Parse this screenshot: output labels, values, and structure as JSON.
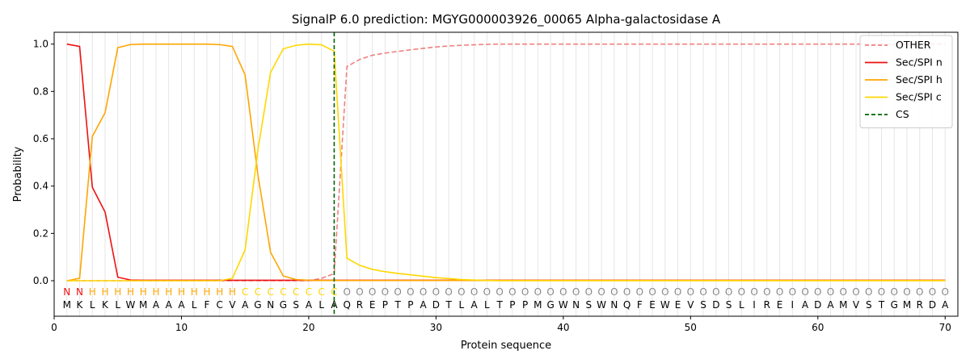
{
  "chart_data": {
    "type": "line",
    "title": "SignalP 6.0 prediction: MGYG000003926_00065 Alpha-galactosidase A",
    "xlabel": "Protein sequence",
    "ylabel": "Probability",
    "xlim": [
      0,
      71
    ],
    "ylim": [
      -0.15,
      1.05
    ],
    "xticks": [
      0,
      10,
      20,
      30,
      40,
      50,
      60,
      70
    ],
    "yticks": [
      0.0,
      0.2,
      0.4,
      0.6,
      0.8,
      1.0
    ],
    "grid": "vertical lines at each residue",
    "legend_position": "top-right",
    "sequence": "MKLKLWMAAALFCVAGNGSALAQREPTPADTLALTPPMGWNSWNQFEWEVSDSLIREIADAMVSTGMRDA",
    "region_labels": "NNHHHHHHHHHHHHCCCCCCCCOOOOOOOOOOOOOOOOOOOOOOOOOOOOOOOOOOOOOOOOOOOOOOOO",
    "region_colors": {
      "N": "#ee1111",
      "H": "#ffa500",
      "C": "#ffd700",
      "O": "#888888"
    },
    "cleavage_site": 22,
    "series": [
      {
        "name": "OTHER",
        "color": "#f08080",
        "dash": "dashed",
        "values": [
          0,
          0,
          0,
          0,
          0,
          0,
          0,
          0,
          0,
          0,
          0,
          0,
          0,
          0,
          0,
          0,
          0,
          0,
          0,
          0,
          0.01,
          0.03,
          0.905,
          0.935,
          0.953,
          0.962,
          0.969,
          0.976,
          0.982,
          0.988,
          0.992,
          0.995,
          0.997,
          0.999,
          1,
          1,
          1,
          1,
          1,
          1,
          1,
          1,
          1,
          1,
          1,
          1,
          1,
          1,
          1,
          1,
          1,
          1,
          1,
          1,
          1,
          1,
          1,
          1,
          1,
          1,
          1,
          1,
          1,
          1,
          1,
          1,
          1,
          1,
          1,
          1
        ]
      },
      {
        "name": "Sec/SPI n",
        "color": "#ee1111",
        "dash": "solid",
        "values": [
          1.0,
          0.99,
          0.395,
          0.29,
          0.015,
          0.003,
          0.002,
          0.002,
          0.002,
          0.002,
          0.002,
          0.002,
          0.002,
          0.002,
          0.002,
          0.002,
          0.002,
          0.002,
          0.002,
          0.002,
          0.002,
          0.002,
          0.002,
          0.002,
          0.002,
          0.002,
          0.002,
          0.002,
          0.002,
          0.002,
          0.002,
          0.002,
          0.002,
          0.002,
          0.002,
          0.002,
          0.002,
          0.002,
          0.002,
          0.002,
          0.002,
          0.002,
          0.002,
          0.002,
          0.002,
          0.002,
          0.002,
          0.002,
          0.002,
          0.002,
          0.002,
          0.002,
          0.002,
          0.002,
          0.002,
          0.002,
          0.002,
          0.002,
          0.002,
          0.002,
          0.002,
          0.002,
          0.002,
          0.002,
          0.002,
          0.002,
          0.002,
          0.002,
          0.002,
          0.002
        ]
      },
      {
        "name": "Sec/SPI h",
        "color": "#ffa500",
        "dash": "solid",
        "values": [
          0.0,
          0.01,
          0.61,
          0.71,
          0.985,
          0.998,
          1.0,
          1.0,
          1.0,
          1.0,
          1.0,
          1.0,
          0.998,
          0.99,
          0.87,
          0.45,
          0.12,
          0.02,
          0.005,
          0.002,
          0.001,
          0.001,
          0.001,
          0.001,
          0.001,
          0.001,
          0.001,
          0.001,
          0.001,
          0.001,
          0.001,
          0.001,
          0.001,
          0.001,
          0.001,
          0.001,
          0.001,
          0.001,
          0.001,
          0.001,
          0.001,
          0.001,
          0.001,
          0.001,
          0.001,
          0.001,
          0.001,
          0.001,
          0.001,
          0.001,
          0.001,
          0.001,
          0.001,
          0.001,
          0.001,
          0.001,
          0.001,
          0.001,
          0.001,
          0.001,
          0.001,
          0.001,
          0.001,
          0.001,
          0.001,
          0.001,
          0.001,
          0.001,
          0.001,
          0.001
        ]
      },
      {
        "name": "Sec/SPI c",
        "color": "#ffd700",
        "dash": "solid",
        "values": [
          0.0,
          0.0,
          0.0,
          0.0,
          0.0,
          0.0,
          0.0,
          0.0,
          0.0,
          0.0,
          0.0,
          0.0,
          0.0,
          0.01,
          0.13,
          0.55,
          0.88,
          0.98,
          0.995,
          1.0,
          0.997,
          0.97,
          0.095,
          0.065,
          0.048,
          0.038,
          0.031,
          0.025,
          0.019,
          0.013,
          0.009,
          0.005,
          0.003,
          0.001,
          0.0,
          0.0,
          0.0,
          0.0,
          0.0,
          0.0,
          0.0,
          0.0,
          0.0,
          0.0,
          0.0,
          0.0,
          0.0,
          0.0,
          0.0,
          0.0,
          0.0,
          0.0,
          0.0,
          0.0,
          0.0,
          0.0,
          0.0,
          0.0,
          0.0,
          0.0,
          0.0,
          0.0,
          0.0,
          0.0,
          0.0,
          0.0,
          0.0,
          0.0,
          0.0,
          0.0
        ]
      }
    ],
    "cs_series": {
      "name": "CS",
      "color": "#006400",
      "dash": "dashed"
    }
  }
}
